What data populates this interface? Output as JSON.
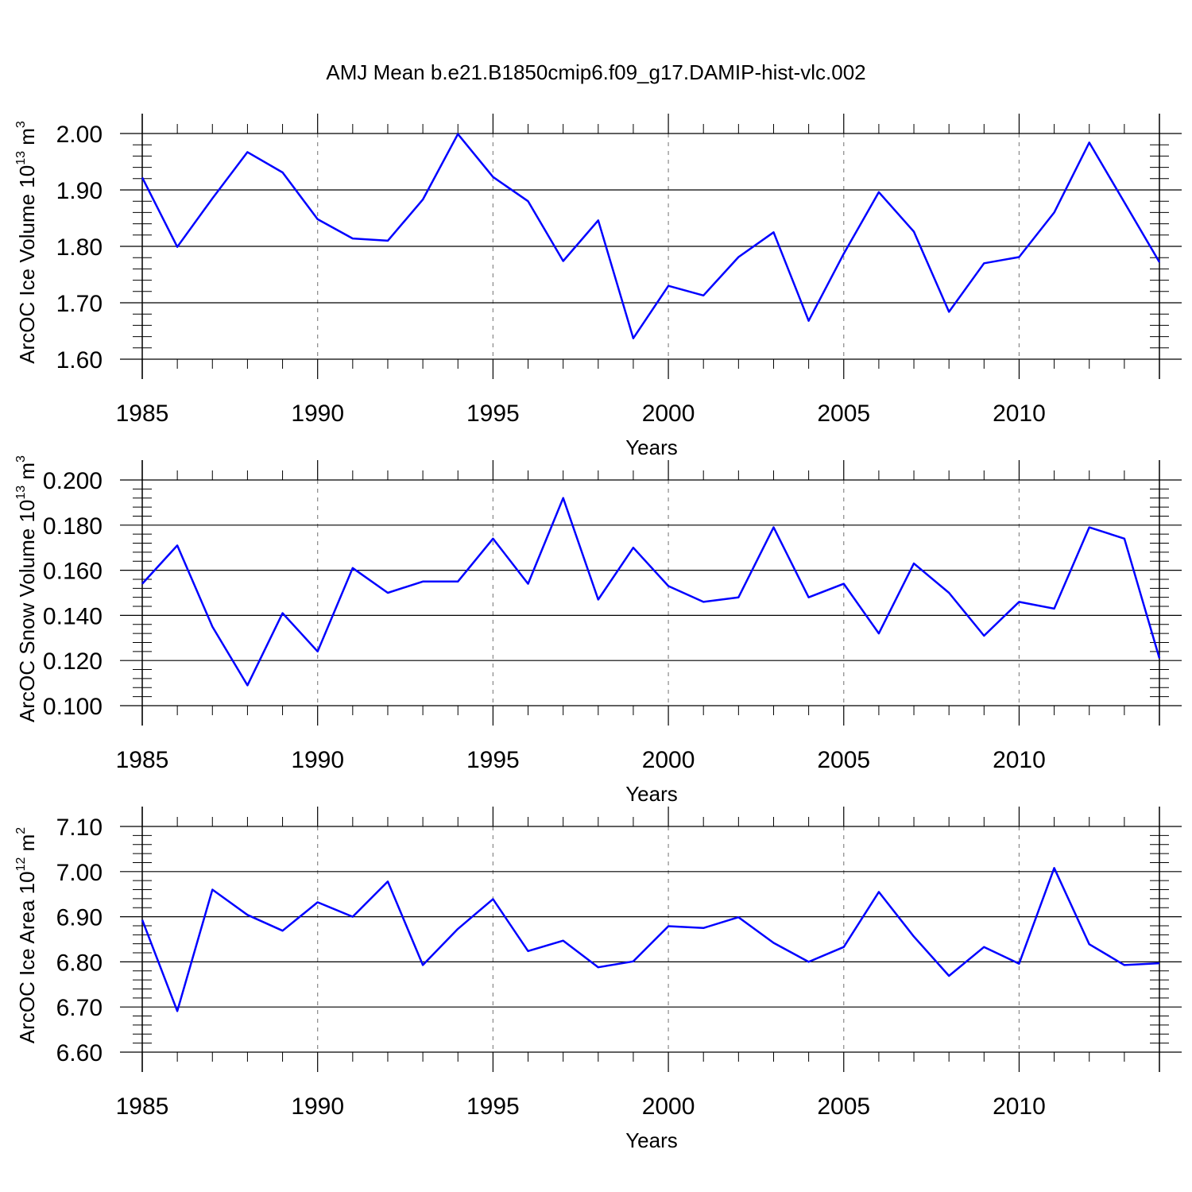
{
  "title": "AMJ Mean b.e21.B1850cmip6.f09_g17.DAMIP-hist-vlc.002",
  "line_color": "#0000ff",
  "chart_data": [
    {
      "type": "line",
      "ylabel_main": "ArcOC Ice Volume 10",
      "ylabel_exp": "13",
      "ylabel_tail": " m",
      "ylabel_unit_exp": "3",
      "xlabel": "Years",
      "xlim": [
        1985,
        2014
      ],
      "ylim": [
        1.6,
        2.0
      ],
      "x_ticks": [
        1985,
        1990,
        1995,
        2000,
        2005,
        2010
      ],
      "x_tick_labels": [
        "1985",
        "1990",
        "1995",
        "2000",
        "2005",
        "2010"
      ],
      "y_ticks": [
        1.6,
        1.7,
        1.8,
        1.9,
        2.0
      ],
      "y_tick_labels": [
        "1.60",
        "1.70",
        "1.80",
        "1.90",
        "2.00"
      ],
      "grid": "vertical dashed at labeled years",
      "x": [
        1985,
        1986,
        1987,
        1988,
        1989,
        1990,
        1991,
        1992,
        1993,
        1994,
        1995,
        1996,
        1997,
        1998,
        1999,
        2000,
        2001,
        2002,
        2003,
        2004,
        2005,
        2006,
        2007,
        2008,
        2009,
        2010,
        2011,
        2012,
        2013,
        2014
      ],
      "values": [
        1.922,
        1.799,
        1.885,
        1.967,
        1.931,
        1.848,
        1.814,
        1.81,
        1.883,
        1.999,
        1.923,
        1.88,
        1.774,
        1.846,
        1.637,
        1.73,
        1.713,
        1.781,
        1.825,
        1.668,
        1.787,
        1.896,
        1.826,
        1.684,
        1.77,
        1.781,
        1.86,
        1.984,
        1.878,
        1.772
      ]
    },
    {
      "type": "line",
      "ylabel_main": "ArcOC Snow Volume 10",
      "ylabel_exp": "13",
      "ylabel_tail": " m",
      "ylabel_unit_exp": "3",
      "xlabel": "Years",
      "xlim": [
        1985,
        2014
      ],
      "ylim": [
        0.1,
        0.2
      ],
      "x_ticks": [
        1985,
        1990,
        1995,
        2000,
        2005,
        2010
      ],
      "x_tick_labels": [
        "1985",
        "1990",
        "1995",
        "2000",
        "2005",
        "2010"
      ],
      "y_ticks": [
        0.1,
        0.12,
        0.14,
        0.16,
        0.18,
        0.2
      ],
      "y_tick_labels": [
        "0.100",
        "0.120",
        "0.140",
        "0.160",
        "0.180",
        "0.200"
      ],
      "grid": "vertical dashed at labeled years",
      "x": [
        1985,
        1986,
        1987,
        1988,
        1989,
        1990,
        1991,
        1992,
        1993,
        1994,
        1995,
        1996,
        1997,
        1998,
        1999,
        2000,
        2001,
        2002,
        2003,
        2004,
        2005,
        2006,
        2007,
        2008,
        2009,
        2010,
        2011,
        2012,
        2013,
        2014
      ],
      "values": [
        0.154,
        0.171,
        0.135,
        0.109,
        0.141,
        0.124,
        0.161,
        0.15,
        0.155,
        0.155,
        0.174,
        0.154,
        0.192,
        0.147,
        0.17,
        0.153,
        0.146,
        0.148,
        0.179,
        0.148,
        0.154,
        0.132,
        0.163,
        0.15,
        0.131,
        0.146,
        0.143,
        0.179,
        0.174,
        0.121
      ]
    },
    {
      "type": "line",
      "ylabel_main": "ArcOC Ice Area 10",
      "ylabel_exp": "12",
      "ylabel_tail": " m",
      "ylabel_unit_exp": "2",
      "xlabel": "Years",
      "xlim": [
        1985,
        2014
      ],
      "ylim": [
        6.6,
        7.1
      ],
      "x_ticks": [
        1985,
        1990,
        1995,
        2000,
        2005,
        2010
      ],
      "x_tick_labels": [
        "1985",
        "1990",
        "1995",
        "2000",
        "2005",
        "2010"
      ],
      "y_ticks": [
        6.6,
        6.7,
        6.8,
        6.9,
        7.0,
        7.1
      ],
      "y_tick_labels": [
        "6.60",
        "6.70",
        "6.80",
        "6.90",
        "7.00",
        "7.10"
      ],
      "grid": "vertical dashed at labeled years",
      "x": [
        1985,
        1986,
        1987,
        1988,
        1989,
        1990,
        1991,
        1992,
        1993,
        1994,
        1995,
        1996,
        1997,
        1998,
        1999,
        2000,
        2001,
        2002,
        2003,
        2004,
        2005,
        2006,
        2007,
        2008,
        2009,
        2010,
        2011,
        2012,
        2013,
        2014
      ],
      "values": [
        6.893,
        6.691,
        6.96,
        6.904,
        6.869,
        6.932,
        6.9,
        6.978,
        6.793,
        6.873,
        6.939,
        6.824,
        6.847,
        6.788,
        6.801,
        6.879,
        6.875,
        6.899,
        6.842,
        6.8,
        6.833,
        6.955,
        6.856,
        6.769,
        6.833,
        6.796,
        7.008,
        6.839,
        6.793,
        6.797
      ]
    }
  ]
}
